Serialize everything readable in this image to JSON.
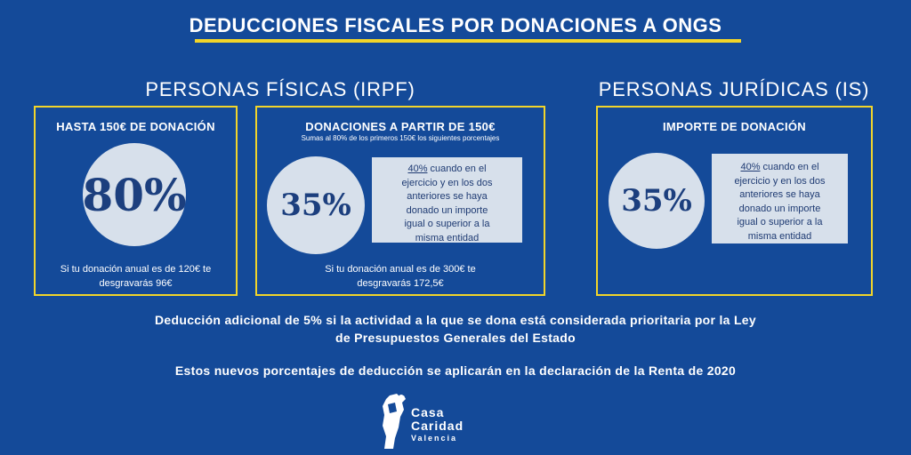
{
  "title": "DEDUCCIONES FISCALES POR DONACIONES A ONGS",
  "sections": {
    "fisicas": "PERSONAS FÍSICAS (IRPF)",
    "juridicas": "PERSONAS JURÍDICAS (IS)"
  },
  "box1": {
    "heading": "HASTA 150€ DE DONACIÓN",
    "percent": "80%",
    "example_line1": "Si tu donación anual es de 120€ te",
    "example_line2": "desgravarás 96€"
  },
  "box2": {
    "heading": "DONACIONES A PARTIR DE 150€",
    "subheading": "Sumas al 80% de los primeros 150€ los siguientes porcentajes",
    "percent": "35%",
    "note_pct": "40%",
    "note_line1": " cuando en el",
    "note_line2": "ejercicio y en los dos",
    "note_line3": "anteriores se haya",
    "note_line4": "donado un importe",
    "note_line5": "igual o superior  a la",
    "note_line6": "misma entidad",
    "example_line1": "Si tu donación anual es de 300€ te",
    "example_line2": "desgravarás 172,5€"
  },
  "box3": {
    "heading": "IMPORTE DE DONACIÓN",
    "percent": "35%",
    "note_pct": "40%",
    "note_line1": " cuando en el",
    "note_line2": "ejercicio y en los dos",
    "note_line3": "anteriores se haya",
    "note_line4": "donado un importe",
    "note_line5": "igual o superior  a la",
    "note_line6": "misma entidad"
  },
  "footer": {
    "line1": "Deducción adicional de 5% si la actividad a la que se dona está considerada prioritaria por la Ley",
    "line2": "de Presupuestos Generales del Estado",
    "line3": "Estos nuevos porcentajes de deducción se aplicarán en la declaración de la Renta de 2020"
  },
  "logo": {
    "line1": "Casa",
    "line2": "Caridad",
    "line3": "Valencia"
  },
  "colors": {
    "background": "#144a99",
    "accent": "#f2d52a",
    "circle": "#d7e0eb",
    "text_dark": "#1c3f7e"
  }
}
